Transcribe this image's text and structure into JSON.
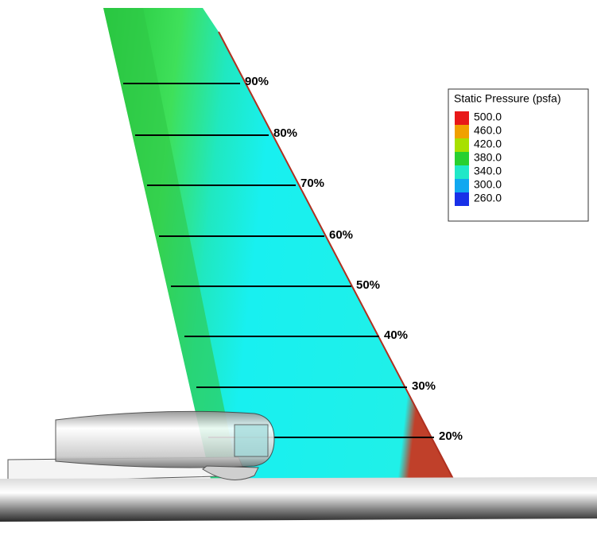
{
  "legend": {
    "title": "Static Pressure (psfa)",
    "levels": [
      "500.0",
      "460.0",
      "420.0",
      "380.0",
      "340.0",
      "300.0",
      "260.0"
    ]
  },
  "stations": [
    "90%",
    "80%",
    "70%",
    "60%",
    "50%",
    "40%",
    "30%",
    "20%"
  ]
}
